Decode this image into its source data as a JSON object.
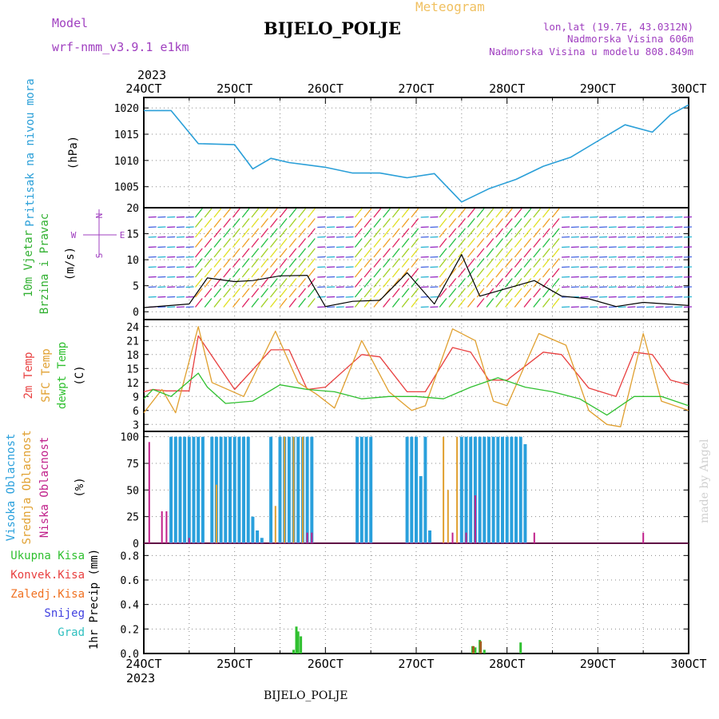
{
  "header": {
    "title": "BIJELO_POLJE",
    "model_label": "Model",
    "model_name": "wrf-nmm_v3.9.1 e1km",
    "meteogram_label": "Meteogram",
    "coords": "lon,lat (19.7E, 43.0312N)",
    "elevation": "Nadmorska Visina 606m",
    "model_elevation": "Nadmorska Visina u modelu 808.849m",
    "year": "2023",
    "footer_station": "BIJELO_POLJE",
    "credit": "made by Angel"
  },
  "colors": {
    "pressure": "#2a9fd8",
    "wind": "#30b030",
    "wind_units": "#000000",
    "compass": "#a040c0",
    "temp2m": "#e84040",
    "sfc_temp": "#e0a030",
    "dewpt": "#30c030",
    "high_cloud": "#2aa0dc",
    "mid_cloud": "#e0a030",
    "low_cloud": "#c0208a",
    "total_precip": "#30c030",
    "conv_precip": "#e84040",
    "frz_precip": "#f07020",
    "snow": "#4040e0",
    "hail": "#30c0c0",
    "header_purple": "#a040c0",
    "meteogram_orange": "#f0c060",
    "credit": "#d0d0d0"
  },
  "chart_data": [
    {
      "type": "line",
      "panel": "pressure",
      "ylabel": [
        "Pritisak na nivou mora",
        "(hPa)"
      ],
      "ylim": [
        1001,
        1022
      ],
      "yticks": [
        1005,
        1010,
        1015,
        1020
      ],
      "x_days": [
        24,
        24.5,
        25,
        25.5,
        26,
        26.5,
        27,
        27.5,
        28,
        28.5,
        29,
        29.5,
        30
      ],
      "x": [
        24.0,
        24.3,
        24.6,
        25.0,
        25.2,
        25.4,
        25.6,
        26.0,
        26.3,
        26.6,
        26.9,
        27.2,
        27.5,
        27.8,
        28.1,
        28.4,
        28.7,
        29.0,
        29.3,
        29.6,
        29.8,
        30.0
      ],
      "y": [
        1019.5,
        1019.5,
        1013.2,
        1013.0,
        1008.4,
        1010.4,
        1009.6,
        1008.7,
        1007.6,
        1007.6,
        1006.7,
        1007.5,
        1002.1,
        1004.6,
        1006.4,
        1008.9,
        1010.6,
        1013.7,
        1016.8,
        1015.4,
        1018.7,
        1020.6
      ],
      "grid": true
    },
    {
      "type": "line",
      "panel": "wind",
      "ylabel": [
        "10m Vjetar",
        "Brzina i Pravac",
        "(m/s)"
      ],
      "compass": [
        "W",
        "E",
        "N",
        "S"
      ],
      "ylim": [
        -1.5,
        20
      ],
      "yticks": [
        0,
        5,
        10,
        15,
        20
      ],
      "x": [
        24.0,
        24.5,
        24.7,
        25.0,
        25.2,
        25.5,
        25.8,
        26.0,
        26.3,
        26.6,
        26.9,
        27.2,
        27.5,
        27.7,
        28.0,
        28.3,
        28.6,
        28.9,
        29.2,
        29.5,
        30.0
      ],
      "y": [
        0.8,
        1.5,
        6.5,
        5.8,
        6.0,
        6.9,
        7.0,
        1.0,
        2.0,
        2.2,
        7.5,
        1.5,
        11.0,
        3.0,
        4.5,
        6.0,
        3.0,
        2.5,
        1.0,
        1.8,
        1.2
      ],
      "grid": true
    },
    {
      "type": "line",
      "panel": "temperature",
      "ylabel": [
        "2m Temp",
        "SFC Temp",
        "dewpt Temp",
        "(C)"
      ],
      "ylim": [
        1.5,
        25.5
      ],
      "yticks": [
        3,
        6,
        9,
        12,
        15,
        18,
        21,
        24
      ],
      "series": [
        {
          "name": "2m Temp",
          "x": [
            24.0,
            24.1,
            24.25,
            24.5,
            24.6,
            25.0,
            25.4,
            25.6,
            25.8,
            26.0,
            26.4,
            26.6,
            26.9,
            27.1,
            27.4,
            27.6,
            27.8,
            28.0,
            28.4,
            28.6,
            28.9,
            29.2,
            29.4,
            29.6,
            29.8,
            30.0
          ],
          "y": [
            10,
            10.5,
            10.2,
            10.2,
            22.0,
            10.5,
            19.0,
            19.0,
            10.5,
            11.0,
            18.0,
            17.5,
            10.0,
            10.0,
            19.5,
            18.5,
            12.5,
            12.5,
            18.5,
            18.0,
            10.8,
            9.0,
            18.5,
            18.0,
            12.5,
            11.5
          ]
        },
        {
          "name": "SFC Temp",
          "x": [
            24.0,
            24.2,
            24.35,
            24.6,
            24.75,
            25.1,
            25.45,
            25.7,
            25.9,
            26.1,
            26.4,
            26.7,
            26.95,
            27.1,
            27.4,
            27.65,
            27.85,
            28.0,
            28.35,
            28.65,
            28.9,
            29.1,
            29.25,
            29.5,
            29.7,
            30.0
          ],
          "y": [
            5.5,
            10.5,
            5.5,
            24.0,
            12.0,
            9.0,
            23.0,
            12.0,
            9.5,
            6.5,
            21.0,
            10.0,
            6.0,
            7.0,
            23.5,
            21.0,
            8.0,
            7.0,
            22.5,
            20.0,
            6.0,
            3.0,
            2.5,
            22.5,
            8.0,
            6.0
          ]
        },
        {
          "name": "dewpt Temp",
          "x": [
            24.0,
            24.1,
            24.3,
            24.6,
            24.7,
            24.9,
            25.2,
            25.5,
            25.8,
            26.1,
            26.4,
            26.7,
            27.0,
            27.3,
            27.6,
            27.9,
            28.2,
            28.5,
            28.8,
            29.1,
            29.4,
            29.7,
            30.0
          ],
          "y": [
            8.5,
            10.5,
            9.0,
            14.0,
            11.0,
            7.5,
            8.0,
            11.5,
            10.5,
            10.0,
            8.5,
            9.0,
            9.0,
            8.5,
            11.0,
            13.0,
            11.0,
            10.0,
            8.5,
            5.0,
            9.0,
            9.0,
            7.0
          ]
        }
      ],
      "grid": true
    },
    {
      "type": "bar",
      "panel": "cloud",
      "ylabel": [
        "Visoka Oblacnost",
        "Srednja Oblacnost",
        "Niska Oblacnost",
        "(%)"
      ],
      "ylim": [
        0,
        105
      ],
      "yticks": [
        0,
        25,
        50,
        75,
        100
      ],
      "series": [
        {
          "name": "Visoka Oblacnost",
          "x": [
            24.3,
            24.35,
            24.4,
            24.45,
            24.5,
            24.55,
            24.6,
            24.65,
            24.75,
            24.8,
            24.85,
            24.9,
            24.95,
            25.0,
            25.05,
            25.1,
            25.15,
            25.2,
            25.25,
            25.3,
            25.4,
            25.5,
            25.55,
            25.6,
            25.65,
            25.7,
            25.75,
            25.8,
            25.85,
            26.35,
            26.4,
            26.45,
            26.5,
            26.9,
            26.95,
            27.0,
            27.05,
            27.1,
            27.15,
            27.5,
            27.55,
            27.6,
            27.65,
            27.7,
            27.75,
            27.8,
            27.85,
            27.9,
            27.95,
            28.0,
            28.05,
            28.1,
            28.15,
            28.2
          ],
          "values": [
            100,
            100,
            100,
            100,
            100,
            100,
            100,
            100,
            100,
            100,
            100,
            100,
            100,
            100,
            100,
            100,
            100,
            25,
            12,
            5,
            100,
            100,
            100,
            100,
            100,
            100,
            100,
            100,
            100,
            100,
            100,
            100,
            100,
            100,
            100,
            100,
            63,
            100,
            12,
            100,
            100,
            100,
            100,
            100,
            100,
            100,
            100,
            100,
            100,
            100,
            100,
            100,
            100,
            93
          ]
        },
        {
          "name": "Srednja Oblacnost",
          "x": [
            24.8,
            25.45,
            25.55,
            25.65,
            25.75,
            27.3,
            27.35,
            27.45
          ],
          "values": [
            55,
            35,
            100,
            100,
            100,
            100,
            50,
            100
          ]
        },
        {
          "name": "Niska Oblacnost",
          "x": [
            24.06,
            24.2,
            24.25,
            24.5,
            25.8,
            25.85,
            27.4,
            27.55,
            27.65,
            28.3,
            29.5
          ],
          "values": [
            95,
            30,
            30,
            5,
            10,
            10,
            10,
            10,
            45,
            10,
            10
          ]
        }
      ],
      "grid": true
    },
    {
      "type": "bar",
      "panel": "precip",
      "ylabel": [
        "1hr Precip (mm)"
      ],
      "legend": [
        "Ukupna Kisa",
        "Konvek.Kisa",
        "Zaledj.Kisa",
        "Snijeg",
        "Grad"
      ],
      "ylim": [
        0,
        0.9
      ],
      "yticks": [
        0,
        0.2,
        0.4,
        0.6,
        0.8
      ],
      "xlabel": "BIJELO_POLJE",
      "series": [
        {
          "name": "Ukupna Kisa",
          "x": [
            25.65,
            25.68,
            25.7,
            25.73,
            27.62,
            27.65,
            27.7,
            27.75,
            28.15
          ],
          "values": [
            0.03,
            0.22,
            0.18,
            0.14,
            0.06,
            0.05,
            0.11,
            0.03,
            0.09
          ]
        },
        {
          "name": "Konvek.Kisa",
          "x": [
            27.62,
            27.7
          ],
          "values": [
            0.06,
            0.1
          ]
        }
      ],
      "grid": true
    }
  ],
  "x_axis": {
    "ticks": [
      "24OCT",
      "25OCT",
      "26OCT",
      "27OCT",
      "28OCT",
      "29OCT",
      "30OCT"
    ]
  }
}
